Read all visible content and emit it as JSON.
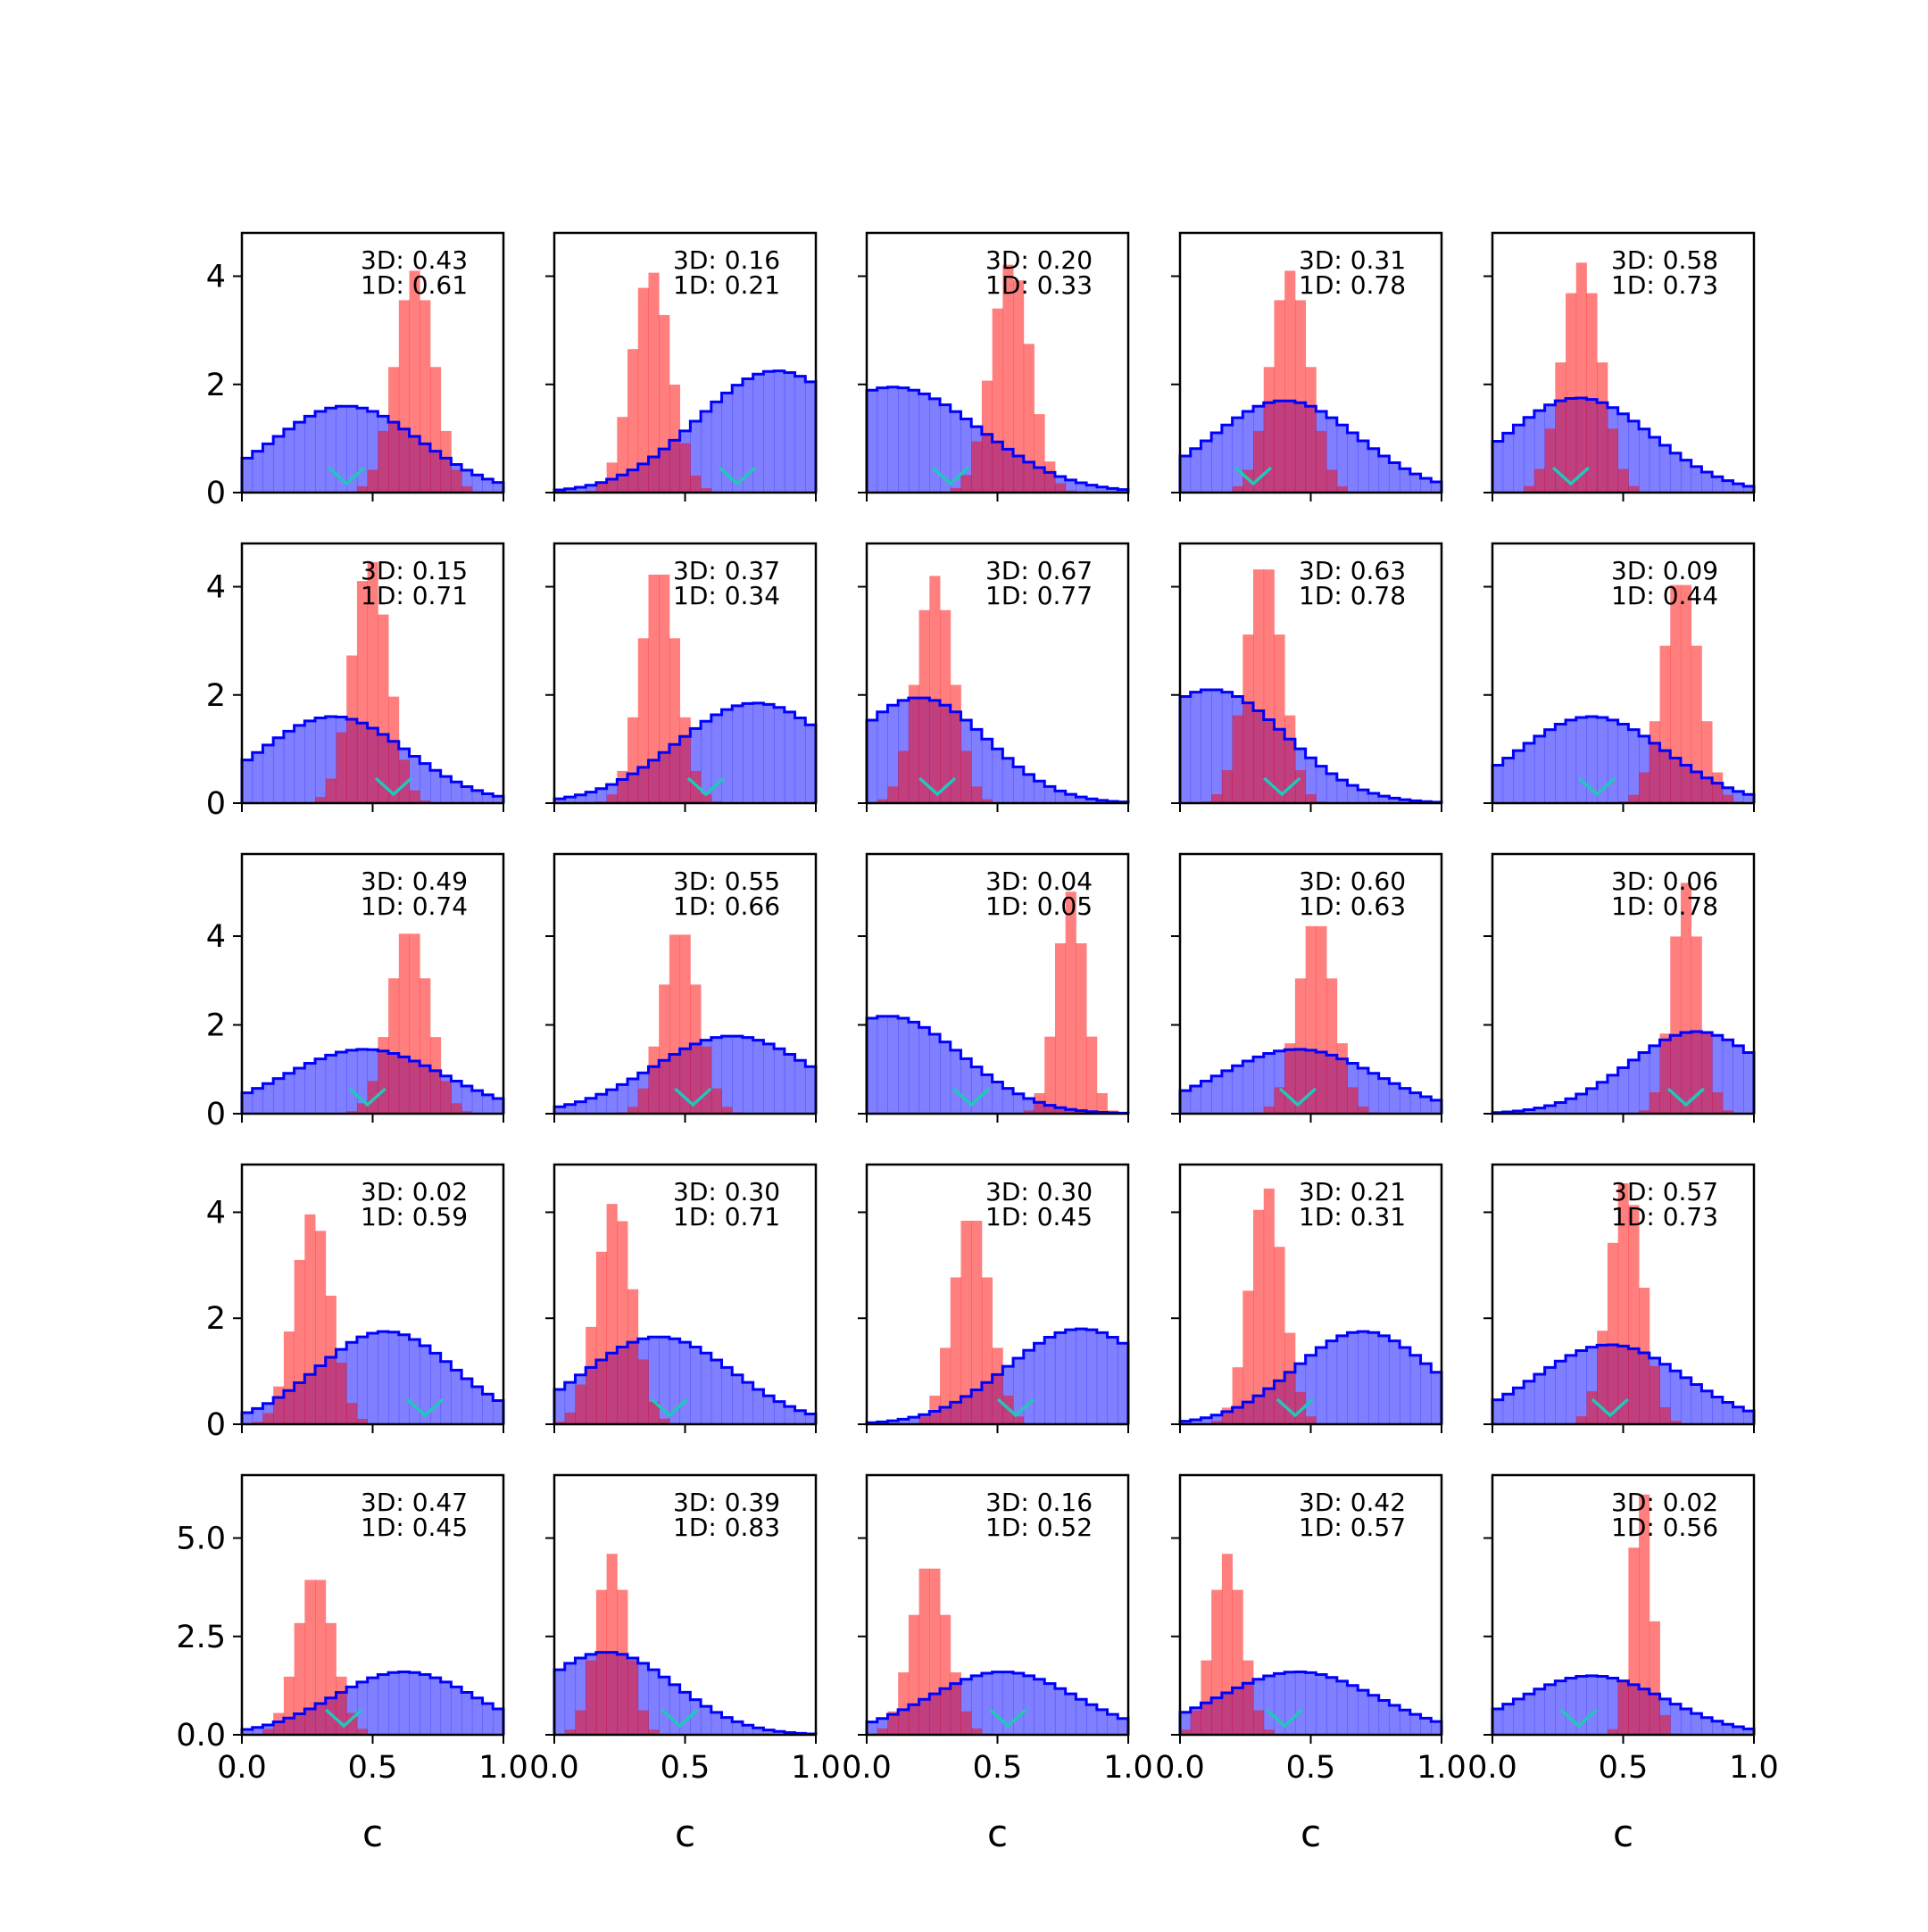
{
  "figure": {
    "xlabel": "c",
    "colors": {
      "broad": "#0000ff",
      "narrow": "#ff0000",
      "marker": "#20c8b8"
    }
  },
  "chart_data": {
    "type": "histogram-grid",
    "rows": 5,
    "cols": 5,
    "xlim": [
      0,
      1
    ],
    "xticks": [
      "0.0",
      "0.5",
      "1.0"
    ],
    "row_axes": [
      {
        "ylim": [
          0,
          4.8
        ],
        "yticks": [
          0,
          2,
          4
        ],
        "ytick_labels": [
          "0",
          "2",
          "4"
        ]
      },
      {
        "ylim": [
          0,
          4.8
        ],
        "yticks": [
          0,
          2,
          4
        ],
        "ytick_labels": [
          "0",
          "2",
          "4"
        ]
      },
      {
        "ylim": [
          0,
          5.85
        ],
        "yticks": [
          0,
          2,
          4
        ],
        "ytick_labels": [
          "0",
          "2",
          "4"
        ]
      },
      {
        "ylim": [
          0,
          4.9
        ],
        "yticks": [
          0,
          2,
          4
        ],
        "ytick_labels": [
          "0",
          "2",
          "4"
        ]
      },
      {
        "ylim": [
          0,
          6.6
        ],
        "yticks": [
          0,
          2.5,
          5
        ],
        "ytick_labels": [
          "0.0",
          "2.5",
          "5.0"
        ]
      }
    ],
    "panels": [
      {
        "annotation": [
          "3D: 0.43",
          "1D: 0.61"
        ],
        "broad": {
          "mu": 0.4,
          "sigma": 0.28,
          "peak": 1.6
        },
        "narrow": {
          "mu": 0.66,
          "sigma": 0.075,
          "peak": 4.1
        },
        "marker": 0.4
      },
      {
        "annotation": [
          "3D: 0.16",
          "1D: 0.21"
        ],
        "broad": {
          "mu": 0.85,
          "sigma": 0.3,
          "peak": 2.25
        },
        "narrow": {
          "mu": 0.37,
          "sigma": 0.075,
          "peak": 4.1
        },
        "marker": 0.7
      },
      {
        "annotation": [
          "3D: 0.20",
          "1D: 0.33"
        ],
        "broad": {
          "mu": 0.1,
          "sigma": 0.33,
          "peak": 1.95
        },
        "narrow": {
          "mu": 0.55,
          "sigma": 0.075,
          "peak": 4.25
        },
        "marker": 0.32
      },
      {
        "annotation": [
          "3D: 0.31",
          "1D: 0.78"
        ],
        "broad": {
          "mu": 0.4,
          "sigma": 0.28,
          "peak": 1.7
        },
        "narrow": {
          "mu": 0.42,
          "sigma": 0.075,
          "peak": 4.1
        },
        "marker": 0.28
      },
      {
        "annotation": [
          "3D: 0.58",
          "1D: 0.73"
        ],
        "broad": {
          "mu": 0.33,
          "sigma": 0.28,
          "peak": 1.75
        },
        "narrow": {
          "mu": 0.34,
          "sigma": 0.075,
          "peak": 4.25
        },
        "marker": 0.3
      },
      {
        "annotation": [
          "3D: 0.15",
          "1D: 0.71"
        ],
        "broad": {
          "mu": 0.35,
          "sigma": 0.28,
          "peak": 1.6
        },
        "narrow": {
          "mu": 0.49,
          "sigma": 0.07,
          "peak": 4.5
        },
        "marker": 0.58
      },
      {
        "annotation": [
          "3D: 0.37",
          "1D: 0.34"
        ],
        "broad": {
          "mu": 0.77,
          "sigma": 0.3,
          "peak": 1.85
        },
        "narrow": {
          "mu": 0.4,
          "sigma": 0.07,
          "peak": 4.4
        },
        "marker": 0.58
      },
      {
        "annotation": [
          "3D: 0.67",
          "1D: 0.77"
        ],
        "broad": {
          "mu": 0.2,
          "sigma": 0.26,
          "peak": 1.95
        },
        "narrow": {
          "mu": 0.26,
          "sigma": 0.07,
          "peak": 4.2
        },
        "marker": 0.27
      },
      {
        "annotation": [
          "3D: 0.63",
          "1D: 0.78"
        ],
        "broad": {
          "mu": 0.12,
          "sigma": 0.28,
          "peak": 2.1
        },
        "narrow": {
          "mu": 0.32,
          "sigma": 0.07,
          "peak": 4.5
        },
        "marker": 0.39
      },
      {
        "annotation": [
          "3D: 0.09",
          "1D: 0.44"
        ],
        "broad": {
          "mu": 0.38,
          "sigma": 0.28,
          "peak": 1.6
        },
        "narrow": {
          "mu": 0.72,
          "sigma": 0.07,
          "peak": 4.2
        },
        "marker": 0.4
      },
      {
        "annotation": [
          "3D: 0.49",
          "1D: 0.74"
        ],
        "broad": {
          "mu": 0.47,
          "sigma": 0.3,
          "peak": 1.45
        },
        "narrow": {
          "mu": 0.64,
          "sigma": 0.075,
          "peak": 4.2
        },
        "marker": 0.48
      },
      {
        "annotation": [
          "3D: 0.55",
          "1D: 0.66"
        ],
        "broad": {
          "mu": 0.68,
          "sigma": 0.3,
          "peak": 1.75
        },
        "narrow": {
          "mu": 0.48,
          "sigma": 0.07,
          "peak": 4.2
        },
        "marker": 0.53
      },
      {
        "annotation": [
          "3D: 0.04",
          "1D: 0.05"
        ],
        "broad": {
          "mu": 0.08,
          "sigma": 0.28,
          "peak": 2.2
        },
        "narrow": {
          "mu": 0.78,
          "sigma": 0.055,
          "peak": 5.0
        },
        "marker": 0.4
      },
      {
        "annotation": [
          "3D: 0.60",
          "1D: 0.63"
        ],
        "broad": {
          "mu": 0.45,
          "sigma": 0.3,
          "peak": 1.45
        },
        "narrow": {
          "mu": 0.52,
          "sigma": 0.07,
          "peak": 4.4
        },
        "marker": 0.45
      },
      {
        "annotation": [
          "3D: 0.06",
          "1D: 0.78"
        ],
        "broad": {
          "mu": 0.78,
          "sigma": 0.26,
          "peak": 1.85
        },
        "narrow": {
          "mu": 0.74,
          "sigma": 0.055,
          "peak": 5.2
        },
        "marker": 0.74
      },
      {
        "annotation": [
          "3D: 0.02",
          "1D: 0.59"
        ],
        "broad": {
          "mu": 0.55,
          "sigma": 0.26,
          "peak": 1.75
        },
        "narrow": {
          "mu": 0.27,
          "sigma": 0.07,
          "peak": 4.0
        },
        "marker": 0.7
      },
      {
        "annotation": [
          "3D: 0.30",
          "1D: 0.71"
        ],
        "broad": {
          "mu": 0.4,
          "sigma": 0.28,
          "peak": 1.65
        },
        "narrow": {
          "mu": 0.23,
          "sigma": 0.07,
          "peak": 4.2
        },
        "marker": 0.44
      },
      {
        "annotation": [
          "3D: 0.30",
          "1D: 0.45"
        ],
        "broad": {
          "mu": 0.82,
          "sigma": 0.28,
          "peak": 1.8
        },
        "narrow": {
          "mu": 0.4,
          "sigma": 0.07,
          "peak": 4.0
        },
        "marker": 0.57
      },
      {
        "annotation": [
          "3D: 0.21",
          "1D: 0.31"
        ],
        "broad": {
          "mu": 0.7,
          "sigma": 0.26,
          "peak": 1.75
        },
        "narrow": {
          "mu": 0.33,
          "sigma": 0.065,
          "peak": 4.5
        },
        "marker": 0.44
      },
      {
        "annotation": [
          "3D: 0.57",
          "1D: 0.73"
        ],
        "broad": {
          "mu": 0.45,
          "sigma": 0.28,
          "peak": 1.5
        },
        "narrow": {
          "mu": 0.51,
          "sigma": 0.065,
          "peak": 4.6
        },
        "marker": 0.45
      },
      {
        "annotation": [
          "3D: 0.47",
          "1D: 0.45"
        ],
        "broad": {
          "mu": 0.62,
          "sigma": 0.27,
          "peak": 1.6
        },
        "narrow": {
          "mu": 0.28,
          "sigma": 0.07,
          "peak": 4.1
        },
        "marker": 0.39
      },
      {
        "annotation": [
          "3D: 0.39",
          "1D: 0.83"
        ],
        "broad": {
          "mu": 0.2,
          "sigma": 0.26,
          "peak": 2.1
        },
        "narrow": {
          "mu": 0.22,
          "sigma": 0.06,
          "peak": 4.6
        },
        "marker": 0.48
      },
      {
        "annotation": [
          "3D: 0.16",
          "1D: 0.52"
        ],
        "broad": {
          "mu": 0.52,
          "sigma": 0.28,
          "peak": 1.6
        },
        "narrow": {
          "mu": 0.24,
          "sigma": 0.07,
          "peak": 4.4
        },
        "marker": 0.54
      },
      {
        "annotation": [
          "3D: 0.42",
          "1D: 0.57"
        ],
        "broad": {
          "mu": 0.45,
          "sigma": 0.3,
          "peak": 1.6
        },
        "narrow": {
          "mu": 0.18,
          "sigma": 0.06,
          "peak": 4.6
        },
        "marker": 0.4
      },
      {
        "annotation": [
          "3D: 0.02",
          "1D: 0.56"
        ],
        "broad": {
          "mu": 0.38,
          "sigma": 0.28,
          "peak": 1.5
        },
        "narrow": {
          "mu": 0.57,
          "sigma": 0.04,
          "peak": 6.3
        },
        "marker": 0.33
      }
    ]
  }
}
